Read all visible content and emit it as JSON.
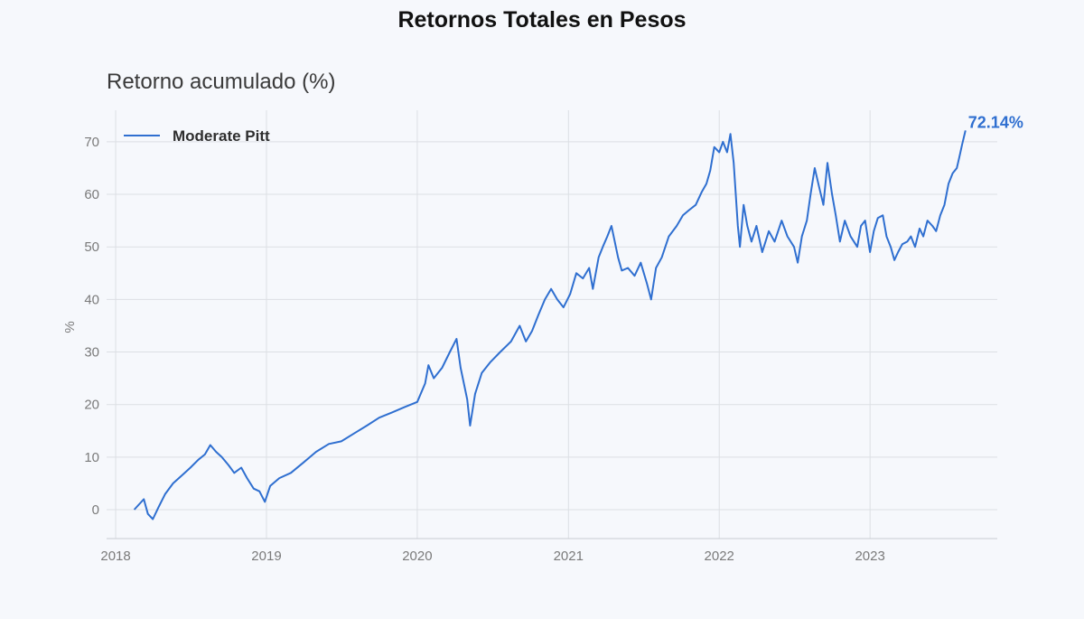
{
  "title": "Retornos Totales en Pesos",
  "chart_data": {
    "type": "line",
    "subtitle": "Retorno acumulado (%)",
    "ylabel": "%",
    "xlabel": "",
    "x_ticks": [
      "2018",
      "2019",
      "2020",
      "2021",
      "2022",
      "2023"
    ],
    "y_ticks": [
      0,
      10,
      20,
      30,
      40,
      50,
      60,
      70
    ],
    "xlim": [
      "2017-12-10",
      "2023-11-05"
    ],
    "ylim": [
      -5.5,
      76
    ],
    "grid": true,
    "legend_position": "top-left",
    "end_label": "72.14%",
    "series": [
      {
        "name": "Moderate Pitt",
        "color": "#2f6fd0",
        "points": [
          [
            "2018-02-15",
            0.0
          ],
          [
            "2018-03-01",
            1.2
          ],
          [
            "2018-03-10",
            2.0
          ],
          [
            "2018-03-20",
            -0.8
          ],
          [
            "2018-04-01",
            -1.8
          ],
          [
            "2018-04-15",
            0.5
          ],
          [
            "2018-05-01",
            3.0
          ],
          [
            "2018-05-20",
            5.0
          ],
          [
            "2018-06-10",
            6.5
          ],
          [
            "2018-07-01",
            8.0
          ],
          [
            "2018-07-20",
            9.5
          ],
          [
            "2018-08-05",
            10.5
          ],
          [
            "2018-08-18",
            12.3
          ],
          [
            "2018-09-01",
            11.0
          ],
          [
            "2018-09-15",
            10.0
          ],
          [
            "2018-10-01",
            8.5
          ],
          [
            "2018-10-15",
            7.0
          ],
          [
            "2018-11-01",
            8.0
          ],
          [
            "2018-11-15",
            6.0
          ],
          [
            "2018-12-01",
            4.0
          ],
          [
            "2018-12-15",
            3.5
          ],
          [
            "2018-12-28",
            1.5
          ],
          [
            "2019-01-10",
            4.5
          ],
          [
            "2019-02-01",
            6.0
          ],
          [
            "2019-03-01",
            7.0
          ],
          [
            "2019-04-01",
            9.0
          ],
          [
            "2019-05-01",
            11.0
          ],
          [
            "2019-06-01",
            12.5
          ],
          [
            "2019-07-01",
            13.0
          ],
          [
            "2019-08-01",
            14.5
          ],
          [
            "2019-09-01",
            16.0
          ],
          [
            "2019-10-01",
            17.5
          ],
          [
            "2019-11-01",
            18.5
          ],
          [
            "2019-12-01",
            19.5
          ],
          [
            "2020-01-01",
            20.5
          ],
          [
            "2020-01-20",
            24.0
          ],
          [
            "2020-01-28",
            27.5
          ],
          [
            "2020-02-10",
            25.0
          ],
          [
            "2020-03-01",
            27.0
          ],
          [
            "2020-03-20",
            30.0
          ],
          [
            "2020-04-05",
            32.5
          ],
          [
            "2020-04-15",
            27.0
          ],
          [
            "2020-05-01",
            21.0
          ],
          [
            "2020-05-08",
            16.0
          ],
          [
            "2020-05-20",
            22.0
          ],
          [
            "2020-06-05",
            26.0
          ],
          [
            "2020-06-25",
            28.0
          ],
          [
            "2020-07-20",
            30.0
          ],
          [
            "2020-08-15",
            32.0
          ],
          [
            "2020-09-05",
            35.0
          ],
          [
            "2020-09-20",
            32.0
          ],
          [
            "2020-10-05",
            34.0
          ],
          [
            "2020-10-20",
            37.0
          ],
          [
            "2020-11-05",
            40.0
          ],
          [
            "2020-11-20",
            42.0
          ],
          [
            "2020-12-05",
            40.0
          ],
          [
            "2020-12-20",
            38.5
          ],
          [
            "2021-01-05",
            41.0
          ],
          [
            "2021-01-20",
            45.0
          ],
          [
            "2021-02-05",
            44.0
          ],
          [
            "2021-02-20",
            46.0
          ],
          [
            "2021-03-01",
            42.0
          ],
          [
            "2021-03-15",
            48.0
          ],
          [
            "2021-03-25",
            50.0
          ],
          [
            "2021-04-05",
            52.0
          ],
          [
            "2021-04-15",
            54.0
          ],
          [
            "2021-05-01",
            48.0
          ],
          [
            "2021-05-10",
            45.5
          ],
          [
            "2021-05-25",
            46.0
          ],
          [
            "2021-06-10",
            44.5
          ],
          [
            "2021-06-25",
            47.0
          ],
          [
            "2021-07-10",
            43.0
          ],
          [
            "2021-07-20",
            40.0
          ],
          [
            "2021-08-01",
            46.0
          ],
          [
            "2021-08-15",
            48.0
          ],
          [
            "2021-09-01",
            52.0
          ],
          [
            "2021-09-20",
            54.0
          ],
          [
            "2021-10-05",
            56.0
          ],
          [
            "2021-10-20",
            57.0
          ],
          [
            "2021-11-05",
            58.0
          ],
          [
            "2021-11-20",
            60.5
          ],
          [
            "2021-12-01",
            62.0
          ],
          [
            "2021-12-10",
            64.5
          ],
          [
            "2021-12-20",
            69.0
          ],
          [
            "2022-01-01",
            68.0
          ],
          [
            "2022-01-10",
            70.0
          ],
          [
            "2022-01-20",
            68.0
          ],
          [
            "2022-01-28",
            71.5
          ],
          [
            "2022-02-05",
            66.0
          ],
          [
            "2022-02-10",
            60.0
          ],
          [
            "2022-02-15",
            54.0
          ],
          [
            "2022-02-20",
            50.0
          ],
          [
            "2022-03-01",
            58.0
          ],
          [
            "2022-03-10",
            54.0
          ],
          [
            "2022-03-20",
            51.0
          ],
          [
            "2022-04-01",
            54.0
          ],
          [
            "2022-04-15",
            49.0
          ],
          [
            "2022-05-01",
            53.0
          ],
          [
            "2022-05-15",
            51.0
          ],
          [
            "2022-06-01",
            55.0
          ],
          [
            "2022-06-15",
            52.0
          ],
          [
            "2022-07-01",
            50.0
          ],
          [
            "2022-07-10",
            47.0
          ],
          [
            "2022-07-20",
            52.0
          ],
          [
            "2022-08-01",
            55.0
          ],
          [
            "2022-08-10",
            60.0
          ],
          [
            "2022-08-20",
            65.0
          ],
          [
            "2022-09-01",
            61.0
          ],
          [
            "2022-09-10",
            58.0
          ],
          [
            "2022-09-20",
            66.0
          ],
          [
            "2022-10-01",
            60.0
          ],
          [
            "2022-10-10",
            56.0
          ],
          [
            "2022-10-20",
            51.0
          ],
          [
            "2022-11-01",
            55.0
          ],
          [
            "2022-11-15",
            52.0
          ],
          [
            "2022-12-01",
            50.0
          ],
          [
            "2022-12-10",
            54.0
          ],
          [
            "2022-12-20",
            55.0
          ],
          [
            "2023-01-01",
            49.0
          ],
          [
            "2023-01-10",
            53.0
          ],
          [
            "2023-01-20",
            55.5
          ],
          [
            "2023-02-01",
            56.0
          ],
          [
            "2023-02-10",
            52.0
          ],
          [
            "2023-02-20",
            50.0
          ],
          [
            "2023-03-01",
            47.5
          ],
          [
            "2023-03-10",
            49.0
          ],
          [
            "2023-03-20",
            50.5
          ],
          [
            "2023-04-01",
            51.0
          ],
          [
            "2023-04-10",
            52.0
          ],
          [
            "2023-04-20",
            50.0
          ],
          [
            "2023-05-01",
            53.5
          ],
          [
            "2023-05-10",
            52.0
          ],
          [
            "2023-05-20",
            55.0
          ],
          [
            "2023-06-01",
            54.0
          ],
          [
            "2023-06-10",
            53.0
          ],
          [
            "2023-06-20",
            56.0
          ],
          [
            "2023-06-30",
            58.0
          ],
          [
            "2023-07-10",
            62.0
          ],
          [
            "2023-07-20",
            64.0
          ],
          [
            "2023-07-30",
            65.0
          ],
          [
            "2023-08-05",
            67.0
          ],
          [
            "2023-08-12",
            69.5
          ],
          [
            "2023-08-20",
            72.14
          ]
        ]
      }
    ]
  }
}
